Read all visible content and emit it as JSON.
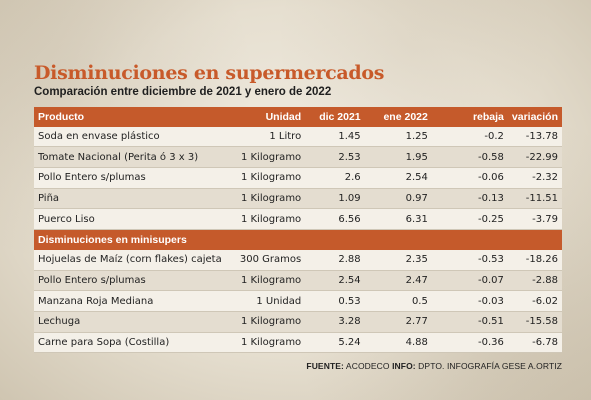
{
  "header": {
    "title": "Disminuciones en supermercados",
    "subtitle": "Comparación entre diciembre de 2021 y enero de 2022"
  },
  "table": {
    "columns": [
      "Producto",
      "Unidad",
      "dic 2021",
      "ene 2022",
      "rebaja",
      "variación"
    ],
    "supermercados": [
      [
        "Soda en envase plástico",
        "1 Litro",
        "1.45",
        "1.25",
        "-0.2",
        "-13.78"
      ],
      [
        "Tomate Nacional (Perita ó 3 x 3)",
        "1 Kilogramo",
        "2.53",
        "1.95",
        "-0.58",
        "-22.99"
      ],
      [
        "Pollo Entero s/plumas",
        "1 Kilogramo",
        "2.6",
        "2.54",
        "-0.06",
        "-2.32"
      ],
      [
        "Piña",
        "1 Kilogramo",
        "1.09",
        "0.97",
        "-0.13",
        "-11.51"
      ],
      [
        "Puerco Liso",
        "1 Kilogramo",
        "6.56",
        "6.31",
        "-0.25",
        "-3.79"
      ]
    ],
    "section_label": "Disminuciones en minisupers",
    "minisupers": [
      [
        "Hojuelas de Maíz (corn flakes) cajeta",
        "300 Gramos",
        "2.88",
        "2.35",
        "-0.53",
        "-18.26"
      ],
      [
        "Pollo Entero s/plumas",
        "1 Kilogramo",
        "2.54",
        "2.47",
        "-0.07",
        "-2.88"
      ],
      [
        "Manzana Roja Mediana",
        "1 Unidad",
        "0.53",
        "0.5",
        "-0.03",
        "-6.02"
      ],
      [
        "Lechuga",
        "1 Kilogramo",
        "3.28",
        "2.77",
        "-0.51",
        "-15.58"
      ],
      [
        "Carne para Sopa (Costilla)",
        "1 Kilogramo",
        "5.24",
        "4.88",
        "-0.36",
        "-6.78"
      ]
    ]
  },
  "footer": {
    "fuente_label": "FUENTE:",
    "fuente_value": " ACODECO ",
    "info_label": "INFO:",
    "info_value": " DPTO. INFOGRAFÍA GESE A.ORTIZ"
  }
}
